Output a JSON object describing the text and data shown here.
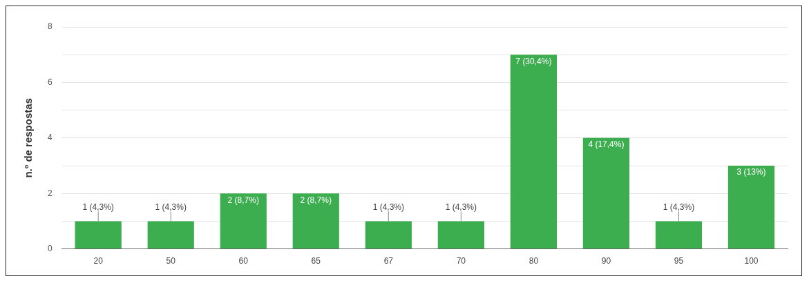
{
  "chart_data": {
    "type": "bar",
    "ylabel": "n.º de respostas",
    "categories": [
      "20",
      "50",
      "60",
      "65",
      "67",
      "70",
      "80",
      "90",
      "95",
      "100"
    ],
    "values": [
      1,
      1,
      2,
      2,
      1,
      1,
      7,
      4,
      1,
      3
    ],
    "value_labels": [
      "1 (4,3%)",
      "1 (4,3%)",
      "2 (8,7%)",
      "2 (8,7%)",
      "1 (4,3%)",
      "1 (4,3%)",
      "7 (30,4%)",
      "4 (17,4%)",
      "1 (4,3%)",
      "3 (13%)"
    ],
    "color": "#3cae50",
    "ylim": [
      0,
      8
    ],
    "yticks": [
      0,
      {
        "value": 1,
        "label": null
      },
      2,
      {
        "value": 3,
        "label": null
      },
      4,
      {
        "value": 5,
        "label": null
      },
      6,
      {
        "value": 7,
        "label": null
      },
      8
    ],
    "grid": "y",
    "legend": false
  }
}
